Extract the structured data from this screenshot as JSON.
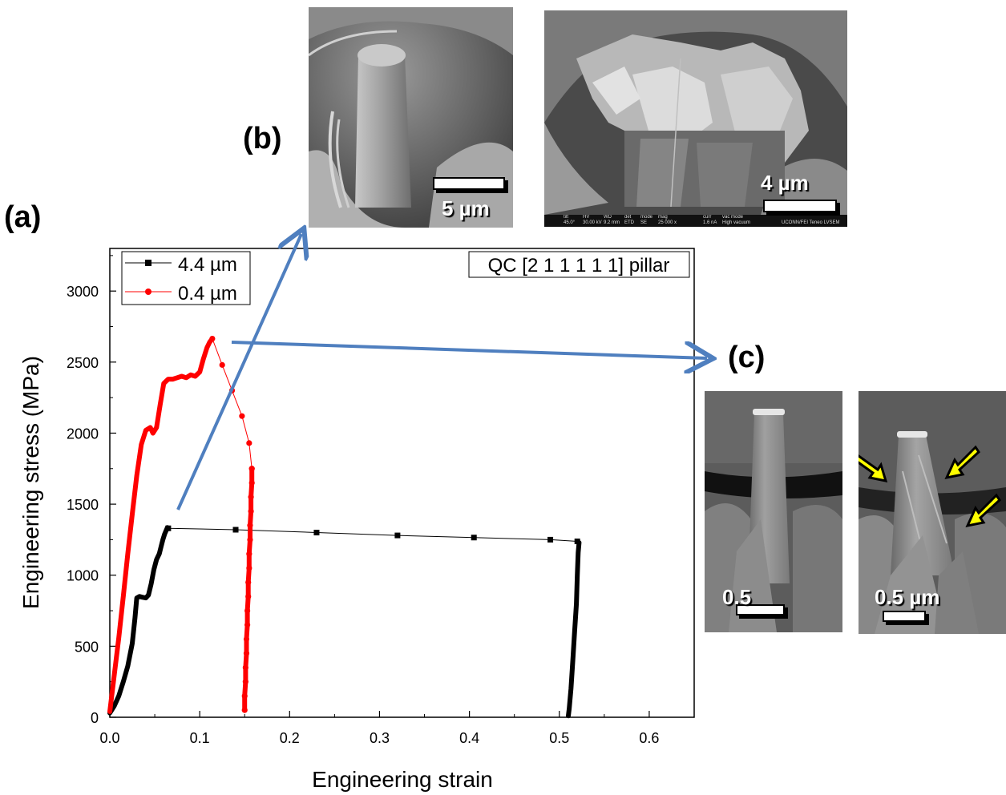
{
  "labels": {
    "a": "(a)",
    "b": "(b)",
    "c": "(c)"
  },
  "sem_images": {
    "b_left": {
      "scale": "5 µm",
      "subject": "pillar-before-compression"
    },
    "b_right": {
      "scale": "4 µm",
      "subject": "fractured-pillar",
      "databar": [
        "tilt",
        "HV",
        "WD",
        "det",
        "mode",
        "mag",
        "curr",
        "vac mode",
        "45.0°",
        "30.00 kV",
        "9.2 mm",
        "ETD",
        "SE",
        "25 000 x",
        "1.6 nA",
        "High vacuum",
        "UCONN/FEI Teneo LVSEM"
      ]
    },
    "c_left": {
      "scale": "0.5",
      "subject": "small-pillar-before"
    },
    "c_right": {
      "scale": "0.5 µm",
      "subject": "small-pillar-after-with-slip-bands"
    }
  },
  "colors": {
    "black_series": "#000000",
    "red_series": "#ff0000",
    "arrow": "#4f7fbf",
    "yellow_arrow": "#ffff00"
  },
  "chart_data": {
    "type": "line",
    "title": "",
    "annotation": "QC [2 1 1 1 1 1] pillar",
    "xlabel": "Engineering strain",
    "ylabel": "Engineering stress (MPa)",
    "xlim": [
      0,
      0.65
    ],
    "ylim": [
      0,
      3300
    ],
    "xticks": [
      0.0,
      0.1,
      0.2,
      0.3,
      0.4,
      0.5,
      0.6
    ],
    "xtick_labels": [
      "0.0",
      "0.1",
      "0.2",
      "0.3",
      "0.4",
      "0.5",
      "0.6"
    ],
    "yticks": [
      0,
      500,
      1000,
      1500,
      2000,
      2500,
      3000
    ],
    "ytick_labels": [
      "0",
      "500",
      "1000",
      "1500",
      "2000",
      "2500",
      "3000"
    ],
    "grid": false,
    "legend_position": "top-left",
    "series": [
      {
        "name": "4.4 µm",
        "color": "#000000",
        "marker": "square",
        "dense": [
          [
            0.0,
            30
          ],
          [
            0.005,
            80
          ],
          [
            0.01,
            150
          ],
          [
            0.015,
            250
          ],
          [
            0.02,
            360
          ],
          [
            0.025,
            520
          ],
          [
            0.028,
            700
          ],
          [
            0.03,
            840
          ],
          [
            0.033,
            850
          ],
          [
            0.036,
            845
          ],
          [
            0.04,
            840
          ],
          [
            0.043,
            860
          ],
          [
            0.046,
            940
          ],
          [
            0.049,
            1040
          ],
          [
            0.052,
            1110
          ],
          [
            0.055,
            1150
          ],
          [
            0.057,
            1200
          ],
          [
            0.059,
            1250
          ],
          [
            0.061,
            1290
          ],
          [
            0.063,
            1320
          ],
          [
            0.064,
            1335
          ],
          [
            0.065,
            1330
          ]
        ],
        "sparse": [
          [
            0.065,
            1330
          ],
          [
            0.14,
            1320
          ],
          [
            0.23,
            1300
          ],
          [
            0.32,
            1280
          ],
          [
            0.405,
            1265
          ],
          [
            0.49,
            1250
          ],
          [
            0.52,
            1238
          ]
        ],
        "tail": [
          [
            0.522,
            1230
          ],
          [
            0.521,
            1160
          ],
          [
            0.52,
            1000
          ],
          [
            0.519,
            800
          ],
          [
            0.517,
            600
          ],
          [
            0.515,
            400
          ],
          [
            0.513,
            200
          ],
          [
            0.511,
            60
          ],
          [
            0.51,
            10
          ]
        ]
      },
      {
        "name": "0.4 µm",
        "color": "#ff0000",
        "marker": "circle",
        "dense": [
          [
            0.0,
            40
          ],
          [
            0.005,
            300
          ],
          [
            0.01,
            560
          ],
          [
            0.015,
            850
          ],
          [
            0.02,
            1150
          ],
          [
            0.025,
            1430
          ],
          [
            0.03,
            1700
          ],
          [
            0.035,
            1920
          ],
          [
            0.04,
            2020
          ],
          [
            0.045,
            2040
          ],
          [
            0.048,
            2000
          ],
          [
            0.052,
            2040
          ],
          [
            0.056,
            2200
          ],
          [
            0.06,
            2350
          ],
          [
            0.065,
            2380
          ],
          [
            0.07,
            2380
          ],
          [
            0.075,
            2390
          ],
          [
            0.08,
            2400
          ],
          [
            0.085,
            2390
          ],
          [
            0.09,
            2410
          ],
          [
            0.095,
            2400
          ],
          [
            0.1,
            2430
          ],
          [
            0.104,
            2520
          ],
          [
            0.108,
            2600
          ],
          [
            0.111,
            2640
          ],
          [
            0.114,
            2665
          ]
        ],
        "sparse": [
          [
            0.114,
            2665
          ],
          [
            0.125,
            2480
          ],
          [
            0.136,
            2300
          ],
          [
            0.147,
            2120
          ],
          [
            0.155,
            1930
          ],
          [
            0.158,
            1750
          ]
        ],
        "tail": [
          [
            0.158,
            1750
          ],
          [
            0.158,
            1650
          ],
          [
            0.157,
            1550
          ],
          [
            0.157,
            1450
          ],
          [
            0.156,
            1350
          ],
          [
            0.156,
            1250
          ],
          [
            0.155,
            1150
          ],
          [
            0.155,
            1050
          ],
          [
            0.154,
            950
          ],
          [
            0.154,
            850
          ],
          [
            0.153,
            750
          ],
          [
            0.153,
            650
          ],
          [
            0.152,
            550
          ],
          [
            0.152,
            450
          ],
          [
            0.151,
            350
          ],
          [
            0.151,
            250
          ],
          [
            0.15,
            150
          ],
          [
            0.15,
            50
          ]
        ]
      }
    ]
  }
}
